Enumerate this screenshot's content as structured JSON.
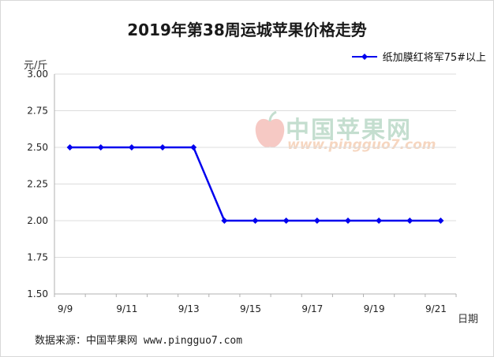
{
  "chart_data": {
    "type": "line",
    "title": "2019年第38周运城苹果价格走势",
    "ylabel": "元/斤",
    "xlabel": "日期",
    "ylim": [
      1.5,
      3.0
    ],
    "yticks": [
      "1.50",
      "1.75",
      "2.00",
      "2.25",
      "2.50",
      "2.75",
      "3.00"
    ],
    "x_tick_labels": [
      "9/9",
      "9/11",
      "9/13",
      "9/15",
      "9/17",
      "9/19",
      "9/21"
    ],
    "x": [
      "9/9",
      "9/10",
      "9/11",
      "9/12",
      "9/13",
      "9/14",
      "9/15",
      "9/16",
      "9/17",
      "9/18",
      "9/19",
      "9/20",
      "9/21"
    ],
    "grid": true,
    "legend_position": "top-right",
    "series": [
      {
        "name": "纸加膜红将军75#以上",
        "color": "#0000ee",
        "values": [
          2.5,
          2.5,
          2.5,
          2.5,
          2.5,
          2.0,
          2.0,
          2.0,
          2.0,
          2.0,
          2.0,
          2.0,
          2.0
        ]
      }
    ]
  },
  "source": "数据来源：中国苹果网 www.pingguo7.com",
  "watermark": {
    "name": "中国苹果网",
    "url": "www.pingguo7.com",
    "icon": "apple-logo-icon"
  }
}
